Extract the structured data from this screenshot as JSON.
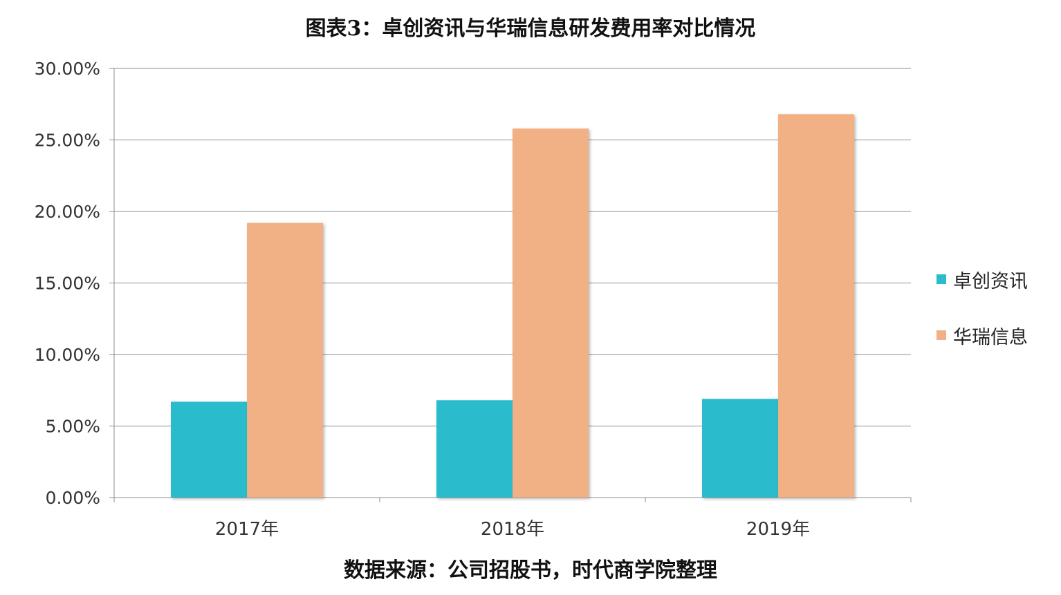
{
  "title": "图表3：卓创资讯与华瑞信息研发费用率对比情况",
  "source": "数据来源：公司招股书，时代商学院整理",
  "chart_data": {
    "type": "bar",
    "categories": [
      "2017年",
      "2018年",
      "2019年"
    ],
    "series": [
      {
        "name": "卓创资讯",
        "color": "#29BCCC",
        "values": [
          6.7,
          6.8,
          6.9
        ]
      },
      {
        "name": "华瑞信息",
        "color": "#F2B085",
        "values": [
          19.2,
          25.8,
          26.8
        ]
      }
    ],
    "ylim": [
      0,
      30
    ],
    "yticks": [
      "0.00%",
      "5.00%",
      "10.00%",
      "15.00%",
      "20.00%",
      "25.00%",
      "30.00%"
    ],
    "grid": true,
    "legend_position": "right"
  }
}
